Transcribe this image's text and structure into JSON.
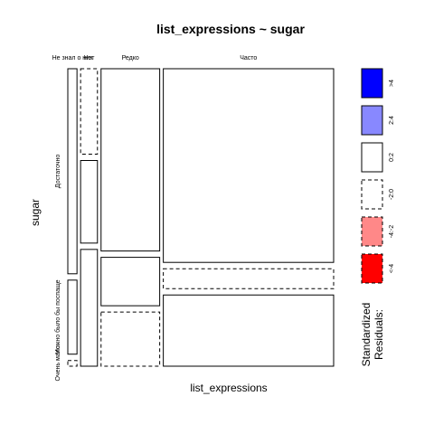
{
  "chart_data": {
    "type": "mosaic",
    "title": "list_expressions ~ sugar",
    "xlabel": "list_expressions",
    "ylabel": "sugar",
    "x_categories": [
      "Не знал о них",
      "Нет",
      "Редко",
      "Часто"
    ],
    "y_categories": [
      "Достаточно",
      "Можно было бы поспаще",
      "Очень мало"
    ],
    "x_proportions": [
      0.036,
      0.066,
      0.23,
      0.668
    ],
    "cells": [
      {
        "x": "Не знал о них",
        "y": "Достаточно",
        "share": 0.72,
        "residual": "0:2"
      },
      {
        "x": "Не знал о них",
        "y": "Можно было бы поспаще",
        "share": 0.26,
        "residual": "0:2"
      },
      {
        "x": "Не знал о них",
        "y": "Очень мало",
        "share": 0.02,
        "residual": "-2:0"
      },
      {
        "x": "Нет",
        "y": "Достаточно",
        "share": 0.3,
        "residual": "-2:0"
      },
      {
        "x": "Нет",
        "y": "Можно было бы поспаще",
        "share": 0.29,
        "residual": "0:2"
      },
      {
        "x": "Нет",
        "y": "Очень мало",
        "share": 0.41,
        "residual": "0:2"
      },
      {
        "x": "Редко",
        "y": "Достаточно",
        "share": 0.64,
        "residual": "0:2"
      },
      {
        "x": "Редко",
        "y": "Можно было бы поспаще",
        "share": 0.17,
        "residual": "0:2"
      },
      {
        "x": "Редко",
        "y": "Очень мало",
        "share": 0.19,
        "residual": "-2:0"
      },
      {
        "x": "Часто",
        "y": "Достаточно",
        "share": 0.68,
        "residual": "0:2"
      },
      {
        "x": "Часто",
        "y": "Можно было бы поспаще",
        "share": 0.07,
        "residual": "-2:0"
      },
      {
        "x": "Часто",
        "y": "Очень мало",
        "share": 0.25,
        "residual": "0:2"
      }
    ],
    "legend": {
      "title_line1": "Standardized",
      "title_line2": "Residuals:",
      "placement": "right",
      "entries": [
        {
          "label": ">4",
          "color": "#0000ff",
          "dashed": false
        },
        {
          "label": "2:4",
          "color": "#8888ff",
          "dashed": false
        },
        {
          "label": "0:2",
          "color": "#ffffff",
          "dashed": false
        },
        {
          "label": "-2:0",
          "color": "#ffffff",
          "dashed": true
        },
        {
          "label": "-4:-2",
          "color": "#ff8888",
          "dashed": true
        },
        {
          "label": "<-4",
          "color": "#ff0000",
          "dashed": true
        }
      ]
    }
  }
}
